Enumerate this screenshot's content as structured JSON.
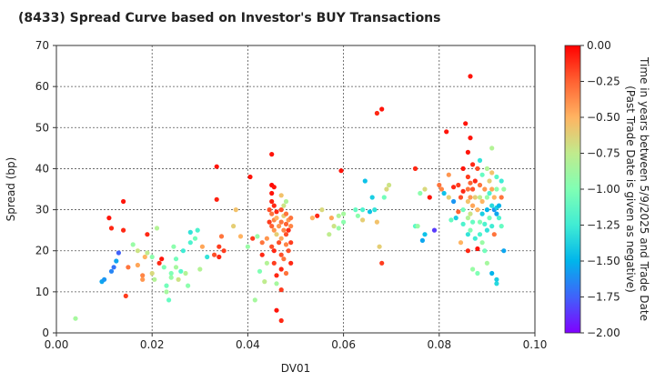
{
  "chart_data": {
    "type": "scatter",
    "title": "(8433)   Spread Curve based on Investor's BUY Transactions",
    "xlabel": "DV01",
    "ylabel": "Spread (bp)",
    "xlim": [
      0.0,
      0.1
    ],
    "ylim": [
      0,
      70
    ],
    "x_ticks": [
      0.0,
      0.02,
      0.04,
      0.06,
      0.08,
      0.1
    ],
    "x_tick_labels": [
      "0.00",
      "0.02",
      "0.04",
      "0.06",
      "0.08",
      "0.10"
    ],
    "y_ticks": [
      0,
      10,
      20,
      30,
      40,
      50,
      60,
      70
    ],
    "y_tick_labels": [
      "0",
      "10",
      "20",
      "30",
      "40",
      "50",
      "60",
      "70"
    ],
    "grid": true,
    "colorbar": {
      "label_line1": "Time in years between 5/9/2025 and Trade Date",
      "label_line2": "(Past Trade Date is given as negative)",
      "range": [
        -2.0,
        0.0
      ],
      "ticks": [
        0.0,
        -0.25,
        -0.5,
        -0.75,
        -1.0,
        -1.25,
        -1.5,
        -1.75,
        -2.0
      ],
      "tick_labels": [
        "0.00",
        "−0.25",
        "−0.50",
        "−0.75",
        "−1.00",
        "−1.25",
        "−1.50",
        "−1.75",
        "−2.00"
      ],
      "colormap": "rainbow"
    },
    "points": [
      [
        0.004,
        3.5,
        -0.85
      ],
      [
        0.0095,
        12.5,
        -1.55
      ],
      [
        0.01,
        13,
        -1.6
      ],
      [
        0.011,
        28,
        -0.05
      ],
      [
        0.0115,
        25.5,
        -0.1
      ],
      [
        0.0115,
        15,
        -1.65
      ],
      [
        0.012,
        16,
        -1.7
      ],
      [
        0.0125,
        17.5,
        -1.55
      ],
      [
        0.013,
        19.5,
        -1.75
      ],
      [
        0.014,
        32,
        -0.05
      ],
      [
        0.014,
        25,
        -0.1
      ],
      [
        0.0145,
        9,
        -0.15
      ],
      [
        0.015,
        16,
        -0.3
      ],
      [
        0.016,
        21.5,
        -0.9
      ],
      [
        0.017,
        20,
        -0.7
      ],
      [
        0.017,
        16.5,
        -0.45
      ],
      [
        0.018,
        14,
        -0.35
      ],
      [
        0.018,
        13,
        -0.4
      ],
      [
        0.0185,
        18.5,
        -0.5
      ],
      [
        0.019,
        19.5,
        -0.75
      ],
      [
        0.019,
        24,
        -0.1
      ],
      [
        0.02,
        14.5,
        -0.65
      ],
      [
        0.02,
        18.5,
        -0.95
      ],
      [
        0.0205,
        13,
        -0.8
      ],
      [
        0.021,
        25.5,
        -0.8
      ],
      [
        0.0215,
        17,
        -0.1
      ],
      [
        0.022,
        18,
        -0.05
      ],
      [
        0.0225,
        16,
        -1.0
      ],
      [
        0.023,
        11.5,
        -1.05
      ],
      [
        0.023,
        10,
        -0.85
      ],
      [
        0.0235,
        8,
        -1.1
      ],
      [
        0.024,
        13.5,
        -0.9
      ],
      [
        0.024,
        14.5,
        -1.0
      ],
      [
        0.0245,
        21,
        -0.95
      ],
      [
        0.025,
        16,
        -0.85
      ],
      [
        0.025,
        18,
        -1.05
      ],
      [
        0.0255,
        13,
        -0.7
      ],
      [
        0.026,
        15,
        -1.15
      ],
      [
        0.0265,
        20,
        -1.25
      ],
      [
        0.027,
        14.5,
        -0.8
      ],
      [
        0.0275,
        11.5,
        -0.95
      ],
      [
        0.028,
        24.5,
        -1.3
      ],
      [
        0.028,
        22,
        -1.2
      ],
      [
        0.029,
        23,
        -1.05
      ],
      [
        0.0295,
        25,
        -1.2
      ],
      [
        0.03,
        15.5,
        -0.8
      ],
      [
        0.0305,
        21,
        -0.45
      ],
      [
        0.0315,
        18.5,
        -1.3
      ],
      [
        0.033,
        19,
        -0.2
      ],
      [
        0.0335,
        40.5,
        -0.05
      ],
      [
        0.0335,
        32.5,
        -0.08
      ],
      [
        0.034,
        21,
        -0.15
      ],
      [
        0.034,
        18.5,
        -0.1
      ],
      [
        0.0345,
        23.5,
        -0.3
      ],
      [
        0.035,
        20,
        -0.15
      ],
      [
        0.037,
        26,
        -0.6
      ],
      [
        0.0375,
        30,
        -0.55
      ],
      [
        0.0385,
        23.5,
        -0.5
      ],
      [
        0.04,
        21,
        -0.9
      ],
      [
        0.0405,
        38,
        -0.05
      ],
      [
        0.041,
        23,
        -0.15
      ],
      [
        0.0415,
        8,
        -0.85
      ],
      [
        0.042,
        23.5,
        -0.9
      ],
      [
        0.0425,
        15,
        -1.0
      ],
      [
        0.043,
        19,
        -0.1
      ],
      [
        0.043,
        22,
        -0.3
      ],
      [
        0.0435,
        12.5,
        -0.75
      ],
      [
        0.044,
        17,
        -0.8
      ],
      [
        0.044,
        23,
        -0.4
      ],
      [
        0.0445,
        30,
        -0.2
      ],
      [
        0.0445,
        27,
        -0.15
      ],
      [
        0.045,
        43.5,
        -0.05
      ],
      [
        0.045,
        36,
        -0.02
      ],
      [
        0.045,
        34,
        -0.05
      ],
      [
        0.045,
        32,
        -0.08
      ],
      [
        0.045,
        29,
        -0.3
      ],
      [
        0.045,
        26,
        -0.25
      ],
      [
        0.045,
        21,
        -0.2
      ],
      [
        0.0455,
        35.5,
        -0.05
      ],
      [
        0.0455,
        31,
        -0.1
      ],
      [
        0.0455,
        27.5,
        -0.35
      ],
      [
        0.0455,
        25,
        -0.4
      ],
      [
        0.0455,
        20,
        -0.1
      ],
      [
        0.0455,
        17,
        -0.15
      ],
      [
        0.046,
        29.5,
        -0.1
      ],
      [
        0.046,
        28,
        -0.5
      ],
      [
        0.046,
        24,
        -0.6
      ],
      [
        0.046,
        14,
        -0.1
      ],
      [
        0.046,
        12,
        -0.85
      ],
      [
        0.046,
        5.5,
        -0.05
      ],
      [
        0.0465,
        26,
        -0.4
      ],
      [
        0.0465,
        22,
        -0.2
      ],
      [
        0.047,
        33.5,
        -0.55
      ],
      [
        0.047,
        30,
        -0.2
      ],
      [
        0.047,
        27,
        -0.3
      ],
      [
        0.047,
        23,
        -0.45
      ],
      [
        0.047,
        19,
        -0.2
      ],
      [
        0.047,
        15.5,
        -0.1
      ],
      [
        0.047,
        10.5,
        -0.15
      ],
      [
        0.047,
        3,
        -0.1
      ],
      [
        0.0475,
        31,
        -0.7
      ],
      [
        0.0475,
        28.5,
        -0.6
      ],
      [
        0.0475,
        25,
        -0.35
      ],
      [
        0.0475,
        18,
        -0.3
      ],
      [
        0.048,
        32,
        -0.8
      ],
      [
        0.048,
        29,
        -0.3
      ],
      [
        0.048,
        26.5,
        -0.25
      ],
      [
        0.048,
        24,
        -0.2
      ],
      [
        0.048,
        21.5,
        -0.35
      ],
      [
        0.048,
        14.5,
        -0.3
      ],
      [
        0.0485,
        27.5,
        -0.4
      ],
      [
        0.0485,
        25,
        -0.1
      ],
      [
        0.0485,
        20,
        -0.2
      ],
      [
        0.049,
        28,
        -0.3
      ],
      [
        0.049,
        26,
        -0.35
      ],
      [
        0.049,
        22,
        -0.15
      ],
      [
        0.049,
        17,
        -0.1
      ],
      [
        0.0535,
        28,
        -0.5
      ],
      [
        0.0545,
        28.5,
        -0.1
      ],
      [
        0.0555,
        30,
        -0.65
      ],
      [
        0.057,
        24,
        -0.75
      ],
      [
        0.0575,
        28,
        -0.45
      ],
      [
        0.058,
        26,
        -0.7
      ],
      [
        0.059,
        28.5,
        -0.8
      ],
      [
        0.059,
        25.5,
        -0.9
      ],
      [
        0.0595,
        39.5,
        -0.05
      ],
      [
        0.06,
        27,
        -0.95
      ],
      [
        0.06,
        29,
        -0.85
      ],
      [
        0.0625,
        30,
        -1.1
      ],
      [
        0.063,
        28.5,
        -0.95
      ],
      [
        0.064,
        30,
        -1.2
      ],
      [
        0.064,
        27.5,
        -0.6
      ],
      [
        0.0645,
        37,
        -1.45
      ],
      [
        0.0655,
        29.5,
        -1.45
      ],
      [
        0.066,
        33,
        -1.4
      ],
      [
        0.0665,
        30,
        -1.3
      ],
      [
        0.067,
        27,
        -0.55
      ],
      [
        0.067,
        53.5,
        -0.1
      ],
      [
        0.0675,
        21,
        -0.6
      ],
      [
        0.068,
        54.5,
        -0.05
      ],
      [
        0.068,
        17,
        -0.15
      ],
      [
        0.0685,
        33,
        -1.05
      ],
      [
        0.069,
        35,
        -0.65
      ],
      [
        0.0695,
        36,
        -0.7
      ],
      [
        0.075,
        40,
        -0.1
      ],
      [
        0.075,
        26,
        -1.15
      ],
      [
        0.0755,
        26,
        -0.9
      ],
      [
        0.076,
        34,
        -0.95
      ],
      [
        0.0765,
        22.5,
        -1.55
      ],
      [
        0.077,
        24,
        -1.45
      ],
      [
        0.077,
        35,
        -0.65
      ],
      [
        0.078,
        33,
        -0.05
      ],
      [
        0.079,
        25,
        -1.85
      ],
      [
        0.08,
        36,
        -0.3
      ],
      [
        0.0805,
        35,
        -0.35
      ],
      [
        0.081,
        34,
        -1.45
      ],
      [
        0.0815,
        49,
        -0.05
      ],
      [
        0.082,
        33,
        -0.6
      ],
      [
        0.082,
        38.5,
        -0.4
      ],
      [
        0.0825,
        27.5,
        -1.1
      ],
      [
        0.083,
        35.5,
        -0.1
      ],
      [
        0.083,
        32,
        -1.6
      ],
      [
        0.0835,
        28,
        -1.4
      ],
      [
        0.084,
        29.5,
        -0.25
      ],
      [
        0.084,
        36,
        -0.15
      ],
      [
        0.0845,
        33,
        -0.2
      ],
      [
        0.0845,
        22,
        -0.5
      ],
      [
        0.085,
        40,
        -0.05
      ],
      [
        0.085,
        34.5,
        -0.1
      ],
      [
        0.085,
        30,
        -1.05
      ],
      [
        0.085,
        26.5,
        -1.2
      ],
      [
        0.0855,
        51,
        -0.05
      ],
      [
        0.086,
        44,
        -0.05
      ],
      [
        0.086,
        38,
        -0.15
      ],
      [
        0.086,
        35,
        -0.3
      ],
      [
        0.086,
        32,
        -0.55
      ],
      [
        0.086,
        28,
        -0.8
      ],
      [
        0.086,
        24,
        -1.3
      ],
      [
        0.086,
        20,
        -0.1
      ],
      [
        0.0865,
        62.5,
        -0.05
      ],
      [
        0.0865,
        47.5,
        -0.05
      ],
      [
        0.0865,
        36.5,
        -0.25
      ],
      [
        0.0865,
        33,
        -0.4
      ],
      [
        0.0865,
        29,
        -0.7
      ],
      [
        0.0865,
        25,
        -1.0
      ],
      [
        0.087,
        41,
        -0.1
      ],
      [
        0.087,
        35,
        -0.2
      ],
      [
        0.087,
        31,
        -0.45
      ],
      [
        0.087,
        27,
        -1.1
      ],
      [
        0.087,
        15.5,
        -0.9
      ],
      [
        0.0875,
        37,
        -0.1
      ],
      [
        0.0875,
        33,
        -0.6
      ],
      [
        0.0875,
        23,
        -1.25
      ],
      [
        0.088,
        40,
        -0.2
      ],
      [
        0.088,
        30,
        -0.5
      ],
      [
        0.088,
        20.5,
        -0.05
      ],
      [
        0.088,
        14.5,
        -1.0
      ],
      [
        0.0885,
        42,
        -1.3
      ],
      [
        0.0885,
        36,
        -0.3
      ],
      [
        0.0885,
        33,
        -0.75
      ],
      [
        0.0885,
        27,
        -1.0
      ],
      [
        0.0885,
        24,
        -1.2
      ],
      [
        0.089,
        38.5,
        -1.1
      ],
      [
        0.089,
        32,
        -0.5
      ],
      [
        0.089,
        29,
        -1.4
      ],
      [
        0.089,
        22,
        -0.9
      ],
      [
        0.0895,
        35,
        -0.4
      ],
      [
        0.0895,
        26.5,
        -1.2
      ],
      [
        0.0895,
        20,
        -1.05
      ],
      [
        0.09,
        40,
        -0.8
      ],
      [
        0.09,
        33,
        -0.9
      ],
      [
        0.09,
        30,
        -1.5
      ],
      [
        0.09,
        25,
        -1.3
      ],
      [
        0.09,
        17,
        -0.85
      ],
      [
        0.0905,
        37,
        -0.6
      ],
      [
        0.0905,
        34,
        -1.2
      ],
      [
        0.0905,
        28,
        -1.05
      ],
      [
        0.091,
        45,
        -0.8
      ],
      [
        0.091,
        39,
        -0.55
      ],
      [
        0.091,
        35,
        -0.45
      ],
      [
        0.091,
        31,
        -1.35
      ],
      [
        0.091,
        26,
        -1.25
      ],
      [
        0.091,
        14.5,
        -1.5
      ],
      [
        0.0915,
        33,
        -0.5
      ],
      [
        0.0915,
        30,
        -1.6
      ],
      [
        0.0915,
        24,
        -0.3
      ],
      [
        0.092,
        38,
        -1.15
      ],
      [
        0.092,
        35,
        -0.95
      ],
      [
        0.092,
        30.5,
        -1.4
      ],
      [
        0.092,
        29,
        -1.55
      ],
      [
        0.092,
        12,
        -1.35
      ],
      [
        0.092,
        13,
        -1.4
      ],
      [
        0.0925,
        31,
        -1.5
      ],
      [
        0.0925,
        28,
        -1.2
      ],
      [
        0.093,
        37,
        -1.25
      ],
      [
        0.093,
        33,
        -0.3
      ],
      [
        0.093,
        26,
        -1.1
      ],
      [
        0.0935,
        20,
        -1.55
      ],
      [
        0.0935,
        35,
        -0.9
      ]
    ]
  }
}
